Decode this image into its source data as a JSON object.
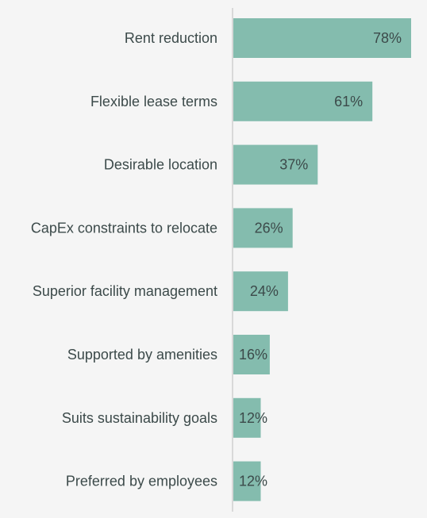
{
  "chart_data": {
    "type": "bar",
    "orientation": "horizontal",
    "categories": [
      "Rent reduction",
      "Flexible lease terms",
      "Desirable location",
      "CapEx constraints to relocate",
      "Superior facility management",
      "Supported by amenities",
      "Suits sustainability goals",
      "Preferred by employees"
    ],
    "values": [
      78,
      61,
      37,
      26,
      24,
      16,
      12,
      12
    ],
    "value_labels": [
      "78%",
      "61%",
      "37%",
      "26%",
      "24%",
      "16%",
      "12%",
      "12%"
    ],
    "xlim": [
      0,
      78
    ],
    "grid": false,
    "legend": "none",
    "colors": {
      "bar": "#84bcae",
      "axis": "#d9d9d9",
      "text": "#3c4a4a",
      "background": "#f5f5f5"
    }
  }
}
